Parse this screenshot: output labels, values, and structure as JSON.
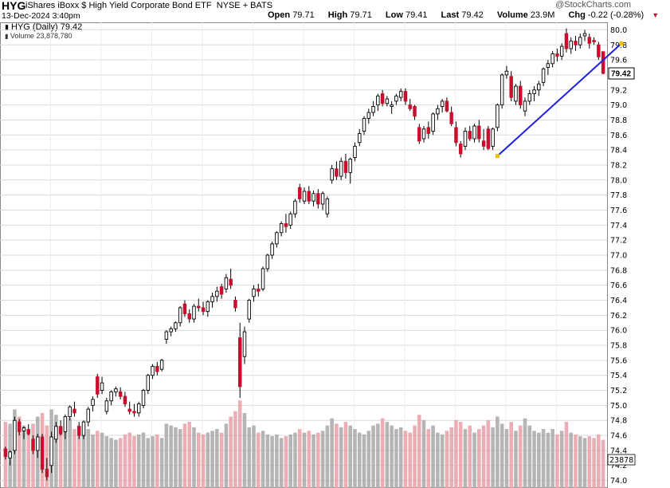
{
  "header": {
    "symbol": "HYG",
    "name": "iShares iBoxx $ High Yield Corporate Bond ETF",
    "exchange": "NYSE + BATS",
    "brand": "@StockCharts.com",
    "date": "13-Dec-2024 3:40pm",
    "open_label": "Open",
    "open": "79.71",
    "high_label": "High",
    "high": "79.71",
    "low_label": "Low",
    "low": "79.41",
    "last_label": "Last",
    "last": "79.42",
    "volume_label": "Volume",
    "volume": "23.9M",
    "chg_label": "Chg",
    "chg": "-0.22 (-0.28%)"
  },
  "legend": {
    "price": "HYG (Daily) 79.42",
    "volume": "Volume 23,878,780"
  },
  "colors": {
    "up": "#ffffff",
    "down": "#c8102e",
    "trendline": "#2020e0",
    "grid": "#d9d9d9",
    "vol_up": "#a8a8a8",
    "vol_down": "#e8a0a8",
    "lastbox": "#ffffff"
  },
  "chart_data": {
    "type": "candlestick",
    "title": "HYG (Daily)",
    "ylim": [
      73.9,
      80.1
    ],
    "yticks": [
      "74.0",
      "74.2",
      "74.4",
      "74.6",
      "74.8",
      "75.0",
      "75.2",
      "75.4",
      "75.6",
      "75.8",
      "76.0",
      "76.2",
      "76.4",
      "76.6",
      "76.8",
      "77.0",
      "77.2",
      "77.4",
      "77.6",
      "77.8",
      "78.0",
      "78.2",
      "78.4",
      "78.6",
      "78.8",
      "79.0",
      "79.2",
      "79.4",
      "79.6",
      "79.8",
      "80.0"
    ],
    "last_price_label": "79.42",
    "volume_axis_label": "23878",
    "volume_max": 100,
    "candles": [
      [
        74.42,
        74.45,
        74.28,
        74.32,
        74
      ],
      [
        74.3,
        74.4,
        74.2,
        74.38,
        72
      ],
      [
        74.4,
        74.85,
        74.35,
        74.8,
        88
      ],
      [
        74.78,
        74.82,
        74.6,
        74.65,
        80
      ],
      [
        74.66,
        74.72,
        74.55,
        74.7,
        70
      ],
      [
        74.68,
        74.75,
        74.6,
        74.62,
        66
      ],
      [
        74.55,
        74.6,
        74.35,
        74.4,
        72
      ],
      [
        74.4,
        74.62,
        74.3,
        74.58,
        80
      ],
      [
        74.58,
        74.62,
        74.1,
        74.15,
        84
      ],
      [
        74.15,
        74.3,
        74.0,
        74.05,
        70
      ],
      [
        74.2,
        74.65,
        74.1,
        74.58,
        88
      ],
      [
        74.55,
        74.78,
        74.5,
        74.72,
        82
      ],
      [
        74.72,
        74.8,
        74.6,
        74.62,
        68
      ],
      [
        74.65,
        74.88,
        74.55,
        74.85,
        74
      ],
      [
        74.85,
        75.0,
        74.8,
        74.98,
        78
      ],
      [
        74.95,
        75.05,
        74.85,
        74.9,
        66
      ],
      [
        74.72,
        74.78,
        74.55,
        74.6,
        70
      ],
      [
        74.6,
        74.8,
        74.55,
        74.78,
        72
      ],
      [
        74.78,
        74.98,
        74.72,
        74.95,
        66
      ],
      [
        75.0,
        75.12,
        74.92,
        75.08,
        60
      ],
      [
        75.38,
        75.42,
        75.1,
        75.15,
        64
      ],
      [
        75.2,
        75.38,
        75.15,
        75.3,
        62
      ],
      [
        74.92,
        75.1,
        74.88,
        75.06,
        58
      ],
      [
        75.06,
        75.2,
        75.0,
        75.18,
        56
      ],
      [
        75.18,
        75.25,
        75.12,
        75.22,
        54
      ],
      [
        75.18,
        75.24,
        75.08,
        75.12,
        56
      ],
      [
        75.12,
        75.18,
        74.98,
        75.02,
        60
      ],
      [
        74.95,
        75.05,
        74.88,
        74.92,
        62
      ],
      [
        74.92,
        75.02,
        74.85,
        74.9,
        58
      ],
      [
        74.9,
        75.05,
        74.85,
        75.02,
        60
      ],
      [
        75.0,
        75.22,
        74.96,
        75.2,
        62
      ],
      [
        75.2,
        75.42,
        75.15,
        75.4,
        56
      ],
      [
        75.4,
        75.55,
        75.35,
        75.52,
        58
      ],
      [
        75.52,
        75.58,
        75.4,
        75.45,
        60
      ],
      [
        75.48,
        75.62,
        75.45,
        75.6,
        56
      ],
      [
        75.88,
        76.0,
        75.82,
        75.98,
        72
      ],
      [
        75.98,
        76.05,
        75.92,
        76.02,
        70
      ],
      [
        76.02,
        76.12,
        75.98,
        76.1,
        68
      ],
      [
        76.1,
        76.32,
        76.05,
        76.3,
        66
      ],
      [
        76.35,
        76.4,
        76.18,
        76.22,
        72
      ],
      [
        76.22,
        76.28,
        76.1,
        76.15,
        74
      ],
      [
        76.15,
        76.35,
        76.1,
        76.32,
        68
      ],
      [
        76.32,
        76.42,
        76.25,
        76.3,
        62
      ],
      [
        76.3,
        76.38,
        76.2,
        76.25,
        60
      ],
      [
        76.25,
        76.4,
        76.18,
        76.38,
        62
      ],
      [
        76.38,
        76.5,
        76.3,
        76.45,
        64
      ],
      [
        76.45,
        76.58,
        76.38,
        76.52,
        66
      ],
      [
        76.58,
        76.62,
        76.42,
        76.48,
        62
      ],
      [
        76.55,
        76.75,
        76.5,
        76.7,
        72
      ],
      [
        76.68,
        76.82,
        76.55,
        76.6,
        80
      ],
      [
        76.4,
        76.45,
        76.25,
        76.3,
        86
      ],
      [
        75.9,
        76.1,
        75.1,
        75.25,
        98
      ],
      [
        75.65,
        76.05,
        75.55,
        75.98,
        84
      ],
      [
        76.15,
        76.42,
        76.1,
        76.4,
        68
      ],
      [
        76.45,
        76.6,
        76.38,
        76.55,
        70
      ],
      [
        76.55,
        76.62,
        76.45,
        76.52,
        62
      ],
      [
        76.55,
        76.85,
        76.52,
        76.82,
        64
      ],
      [
        76.82,
        77.02,
        76.78,
        77.0,
        60
      ],
      [
        77.0,
        77.18,
        76.95,
        77.15,
        58
      ],
      [
        77.15,
        77.32,
        77.1,
        77.3,
        60
      ],
      [
        77.3,
        77.45,
        77.25,
        77.42,
        56
      ],
      [
        77.42,
        77.55,
        77.3,
        77.38,
        58
      ],
      [
        77.4,
        77.58,
        77.35,
        77.55,
        60
      ],
      [
        77.55,
        77.75,
        77.5,
        77.72,
        62
      ],
      [
        77.9,
        77.95,
        77.7,
        77.75,
        66
      ],
      [
        77.72,
        77.9,
        77.68,
        77.85,
        62
      ],
      [
        77.85,
        77.92,
        77.68,
        77.72,
        64
      ],
      [
        77.72,
        77.86,
        77.65,
        77.82,
        60
      ],
      [
        77.82,
        77.88,
        77.62,
        77.68,
        62
      ],
      [
        77.68,
        77.85,
        77.6,
        77.82,
        64
      ],
      [
        77.55,
        77.78,
        77.5,
        77.75,
        70
      ],
      [
        78.0,
        78.2,
        77.95,
        78.15,
        78
      ],
      [
        78.15,
        78.25,
        78.0,
        78.05,
        72
      ],
      [
        78.05,
        78.3,
        78.0,
        78.25,
        68
      ],
      [
        78.25,
        78.35,
        78.02,
        78.1,
        74
      ],
      [
        78.1,
        78.3,
        77.95,
        78.28,
        70
      ],
      [
        78.3,
        78.5,
        78.25,
        78.45,
        66
      ],
      [
        78.5,
        78.68,
        78.45,
        78.62,
        62
      ],
      [
        78.65,
        78.85,
        78.6,
        78.82,
        60
      ],
      [
        78.82,
        78.95,
        78.75,
        78.9,
        64
      ],
      [
        78.9,
        79.05,
        78.85,
        78.98,
        70
      ],
      [
        79.0,
        79.15,
        78.92,
        79.12,
        72
      ],
      [
        79.15,
        79.2,
        78.98,
        79.02,
        78
      ],
      [
        79.02,
        79.12,
        78.98,
        79.08,
        74
      ],
      [
        78.98,
        79.05,
        78.88,
        79.0,
        70
      ],
      [
        79.05,
        79.15,
        79.0,
        79.12,
        66
      ],
      [
        79.1,
        79.22,
        79.05,
        79.18,
        68
      ],
      [
        79.18,
        79.22,
        79.0,
        79.05,
        64
      ],
      [
        79.0,
        79.08,
        78.92,
        78.95,
        62
      ],
      [
        78.98,
        79.0,
        78.8,
        78.85,
        70
      ],
      [
        78.7,
        78.75,
        78.48,
        78.52,
        82
      ],
      [
        78.55,
        78.72,
        78.5,
        78.68,
        76
      ],
      [
        78.7,
        78.78,
        78.55,
        78.62,
        66
      ],
      [
        78.65,
        78.9,
        78.6,
        78.88,
        70
      ],
      [
        78.88,
        79.0,
        78.8,
        78.95,
        62
      ],
      [
        78.98,
        79.08,
        78.9,
        79.05,
        60
      ],
      [
        79.05,
        79.1,
        78.9,
        78.92,
        64
      ],
      [
        78.9,
        78.98,
        78.72,
        78.75,
        68
      ],
      [
        78.7,
        78.78,
        78.45,
        78.5,
        76
      ],
      [
        78.48,
        78.52,
        78.3,
        78.35,
        74
      ],
      [
        78.45,
        78.7,
        78.4,
        78.65,
        66
      ],
      [
        78.65,
        78.72,
        78.52,
        78.55,
        70
      ],
      [
        78.55,
        78.75,
        78.5,
        78.72,
        62
      ],
      [
        78.72,
        78.8,
        78.5,
        78.55,
        66
      ],
      [
        78.52,
        78.68,
        78.4,
        78.45,
        70
      ],
      [
        78.68,
        78.72,
        78.4,
        78.42,
        76
      ],
      [
        78.45,
        78.7,
        78.4,
        78.68,
        68
      ],
      [
        78.7,
        79.02,
        78.65,
        79.0,
        80
      ],
      [
        79.0,
        79.42,
        78.95,
        79.4,
        72
      ],
      [
        79.4,
        79.52,
        79.35,
        79.45,
        66
      ],
      [
        79.38,
        79.45,
        79.05,
        79.1,
        74
      ],
      [
        79.05,
        79.28,
        79.0,
        79.25,
        64
      ],
      [
        79.25,
        79.32,
        78.95,
        79.0,
        70
      ],
      [
        78.92,
        79.1,
        78.85,
        79.05,
        78
      ],
      [
        79.05,
        79.2,
        79.0,
        79.15,
        70
      ],
      [
        79.15,
        79.25,
        79.05,
        79.2,
        64
      ],
      [
        79.2,
        79.32,
        79.12,
        79.28,
        62
      ],
      [
        79.3,
        79.5,
        79.25,
        79.48,
        66
      ],
      [
        79.5,
        79.6,
        79.4,
        79.55,
        62
      ],
      [
        79.55,
        79.72,
        79.5,
        79.68,
        66
      ],
      [
        79.68,
        79.75,
        79.58,
        79.65,
        60
      ],
      [
        79.65,
        79.82,
        79.6,
        79.78,
        64
      ],
      [
        79.95,
        80.02,
        79.7,
        79.75,
        74
      ],
      [
        79.75,
        79.9,
        79.68,
        79.85,
        62
      ],
      [
        79.85,
        79.92,
        79.72,
        79.8,
        60
      ],
      [
        79.8,
        79.95,
        79.75,
        79.9,
        58
      ],
      [
        79.92,
        80.0,
        79.85,
        79.95,
        56
      ],
      [
        79.9,
        79.95,
        79.75,
        79.82,
        58
      ],
      [
        79.86,
        79.9,
        79.8,
        79.84,
        56
      ],
      [
        79.8,
        79.84,
        79.6,
        79.64,
        60
      ],
      [
        79.71,
        79.71,
        79.41,
        79.42,
        54
      ]
    ],
    "trendline": {
      "from": [
        107,
        78.32
      ],
      "to": [
        134,
        79.82
      ]
    }
  }
}
